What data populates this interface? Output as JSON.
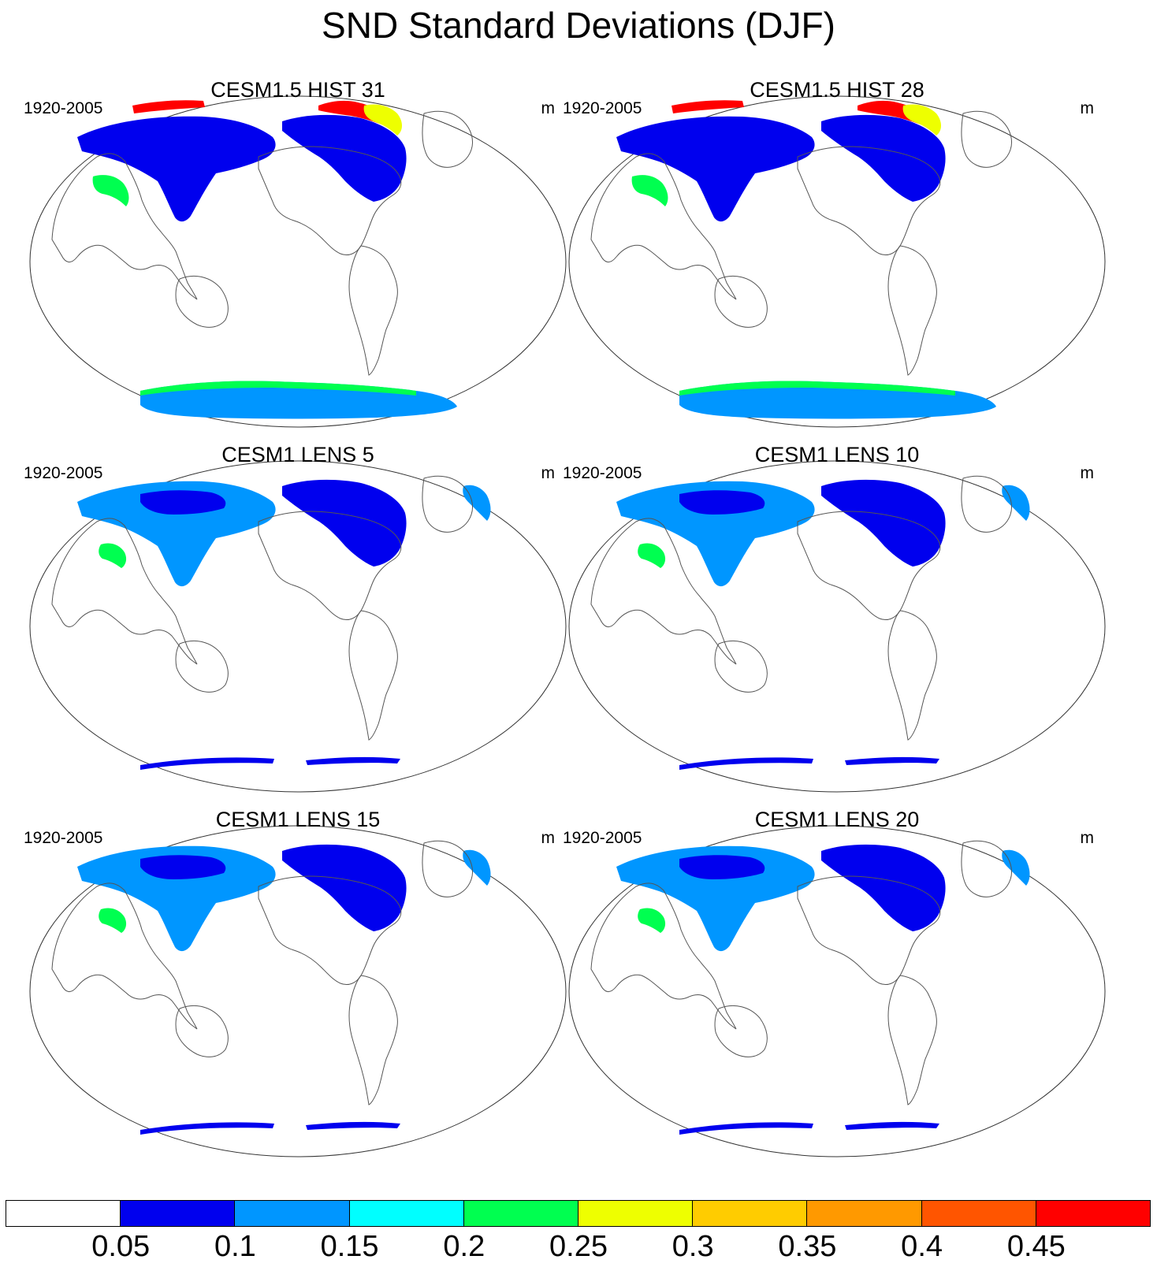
{
  "title": "SND Standard Deviations (DJF)",
  "panels": [
    {
      "title": "CESM1.5 HIST 31",
      "period": "1920-2005",
      "units": "m",
      "variant": "hist"
    },
    {
      "title": "CESM1.5 HIST 28",
      "period": "1920-2005",
      "units": "m",
      "variant": "hist"
    },
    {
      "title": "CESM1 LENS 5",
      "period": "1920-2005",
      "units": "m",
      "variant": "lens"
    },
    {
      "title": "CESM1 LENS 10",
      "period": "1920-2005",
      "units": "m",
      "variant": "lens"
    },
    {
      "title": "CESM1 LENS 15",
      "period": "1920-2005",
      "units": "m",
      "variant": "lens"
    },
    {
      "title": "CESM1 LENS 20",
      "period": "1920-2005",
      "units": "m",
      "variant": "lens"
    }
  ],
  "colorbar": {
    "labels": [
      "0.05",
      "0.1",
      "0.15",
      "0.2",
      "0.25",
      "0.3",
      "0.35",
      "0.4",
      "0.45"
    ],
    "colors": [
      "#ffffff",
      "#0000ee",
      "#0096ff",
      "#00ffff",
      "#00ff50",
      "#eeff00",
      "#ffcc00",
      "#ff9900",
      "#ff5500",
      "#ff0000"
    ]
  }
}
